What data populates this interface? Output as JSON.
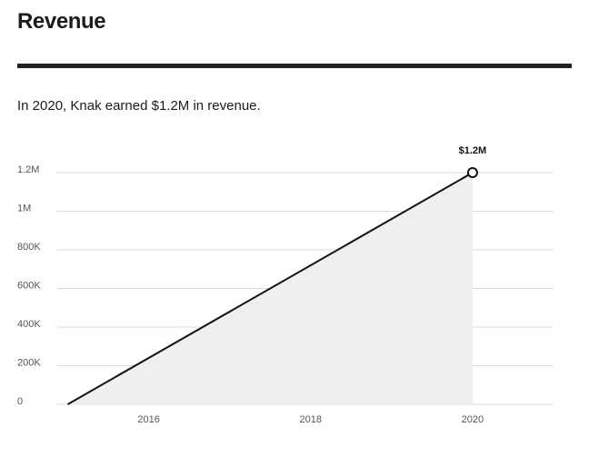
{
  "header": {
    "title": "Revenue"
  },
  "summary": {
    "text": "In 2020, Knak earned $1.2M in revenue."
  },
  "colors": {
    "line": "#111111",
    "area": "#efefef",
    "grid": "#dddddd",
    "divider": "#222222"
  },
  "chart_data": {
    "type": "area",
    "x": [
      2015,
      2020
    ],
    "values": [
      0,
      1200000
    ],
    "xlim": [
      2014.5,
      2021
    ],
    "ylim": [
      0,
      1200000
    ],
    "x_ticks": [
      2016,
      2018,
      2020
    ],
    "x_tick_labels": [
      "2016",
      "2018",
      "2020"
    ],
    "y_ticks": [
      0,
      200000,
      400000,
      600000,
      800000,
      1000000,
      1200000
    ],
    "y_tick_labels": [
      "0",
      "200K",
      "400K",
      "600K",
      "800K",
      "1M",
      "1.2M"
    ],
    "annotation": {
      "x": 2020,
      "y": 1200000,
      "label": "$1.2M"
    },
    "grid": true,
    "legend": "none"
  }
}
